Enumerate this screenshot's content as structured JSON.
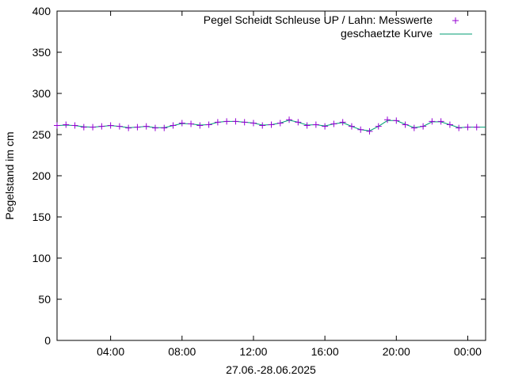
{
  "chart_data": {
    "type": "line",
    "title": "",
    "xlabel": "27.06.-28.06.2025",
    "ylabel": "Pegelstand im cm",
    "xlim": [
      "2025-06-27 01:00",
      "2025-06-28 01:00"
    ],
    "ylim": [
      0,
      400
    ],
    "x_ticks": [
      {
        "t": "2025-06-27 04:00",
        "label": "04:00"
      },
      {
        "t": "2025-06-27 08:00",
        "label": "08:00"
      },
      {
        "t": "2025-06-27 12:00",
        "label": "12:00"
      },
      {
        "t": "2025-06-27 16:00",
        "label": "16:00"
      },
      {
        "t": "2025-06-27 20:00",
        "label": "20:00"
      },
      {
        "t": "2025-06-28 00:00",
        "label": "00:00"
      }
    ],
    "y_ticks": [
      0,
      50,
      100,
      150,
      200,
      250,
      300,
      350,
      400
    ],
    "grid": false,
    "legend_position": "top-right",
    "colors": {
      "measured": "#9400d3",
      "fitted": "#009e73"
    },
    "series": [
      {
        "name": "Pegel Scheidt Schleuse UP / Lahn: Messwerte",
        "style": "points",
        "x": [
          "2025-06-27 01:00",
          "2025-06-27 01:30",
          "2025-06-27 02:00",
          "2025-06-27 02:30",
          "2025-06-27 03:00",
          "2025-06-27 03:30",
          "2025-06-27 04:00",
          "2025-06-27 04:30",
          "2025-06-27 05:00",
          "2025-06-27 05:30",
          "2025-06-27 06:00",
          "2025-06-27 06:30",
          "2025-06-27 07:00",
          "2025-06-27 07:30",
          "2025-06-27 08:00",
          "2025-06-27 08:30",
          "2025-06-27 09:00",
          "2025-06-27 09:30",
          "2025-06-27 10:00",
          "2025-06-27 10:30",
          "2025-06-27 11:00",
          "2025-06-27 11:30",
          "2025-06-27 12:00",
          "2025-06-27 12:30",
          "2025-06-27 13:00",
          "2025-06-27 13:30",
          "2025-06-27 14:00",
          "2025-06-27 14:30",
          "2025-06-27 15:00",
          "2025-06-27 15:30",
          "2025-06-27 16:00",
          "2025-06-27 16:30",
          "2025-06-27 17:00",
          "2025-06-27 17:30",
          "2025-06-27 18:00",
          "2025-06-27 18:30",
          "2025-06-27 19:00",
          "2025-06-27 19:30",
          "2025-06-27 20:00",
          "2025-06-27 20:30",
          "2025-06-27 21:00",
          "2025-06-27 21:30",
          "2025-06-27 22:00",
          "2025-06-27 22:30",
          "2025-06-27 23:00",
          "2025-06-27 23:30",
          "2025-06-28 00:00",
          "2025-06-28 00:30"
        ],
        "y": [
          261,
          262,
          261,
          259,
          259,
          260,
          261,
          260,
          258,
          259,
          260,
          258,
          258,
          261,
          264,
          263,
          261,
          262,
          265,
          266,
          266,
          265,
          264,
          261,
          262,
          264,
          268,
          265,
          261,
          262,
          260,
          263,
          265,
          260,
          256,
          254,
          260,
          268,
          267,
          262,
          258,
          260,
          266,
          266,
          262,
          258,
          259,
          259
        ]
      },
      {
        "name": "geschaetzte Kurve",
        "style": "line",
        "x": [
          "2025-06-27 01:00",
          "2025-06-27 01:30",
          "2025-06-27 02:00",
          "2025-06-27 02:30",
          "2025-06-27 03:00",
          "2025-06-27 03:30",
          "2025-06-27 04:00",
          "2025-06-27 04:30",
          "2025-06-27 05:00",
          "2025-06-27 05:30",
          "2025-06-27 06:00",
          "2025-06-27 06:30",
          "2025-06-27 07:00",
          "2025-06-27 07:30",
          "2025-06-27 08:00",
          "2025-06-27 08:30",
          "2025-06-27 09:00",
          "2025-06-27 09:30",
          "2025-06-27 10:00",
          "2025-06-27 10:30",
          "2025-06-27 11:00",
          "2025-06-27 11:30",
          "2025-06-27 12:00",
          "2025-06-27 12:30",
          "2025-06-27 13:00",
          "2025-06-27 13:30",
          "2025-06-27 14:00",
          "2025-06-27 14:30",
          "2025-06-27 15:00",
          "2025-06-27 15:30",
          "2025-06-27 16:00",
          "2025-06-27 16:30",
          "2025-06-27 17:00",
          "2025-06-27 17:30",
          "2025-06-27 18:00",
          "2025-06-27 18:30",
          "2025-06-27 19:00",
          "2025-06-27 19:30",
          "2025-06-27 20:00",
          "2025-06-27 20:30",
          "2025-06-27 21:00",
          "2025-06-27 21:30",
          "2025-06-27 22:00",
          "2025-06-27 22:30",
          "2025-06-27 23:00",
          "2025-06-27 23:30",
          "2025-06-28 00:00",
          "2025-06-28 00:30",
          "2025-06-28 01:00"
        ],
        "y": [
          261,
          261.5,
          261,
          259.5,
          259,
          260,
          261,
          260,
          258.5,
          259,
          260,
          258.5,
          258.5,
          261,
          263.5,
          263,
          261.5,
          262,
          265,
          266,
          266,
          265,
          264,
          261.5,
          262,
          264,
          267.5,
          265,
          261.5,
          262,
          260.5,
          263,
          264.5,
          260,
          256,
          254.5,
          260,
          267,
          267,
          262.5,
          258.5,
          260,
          265.5,
          265.5,
          262,
          258.5,
          259,
          259,
          259
        ]
      }
    ]
  }
}
